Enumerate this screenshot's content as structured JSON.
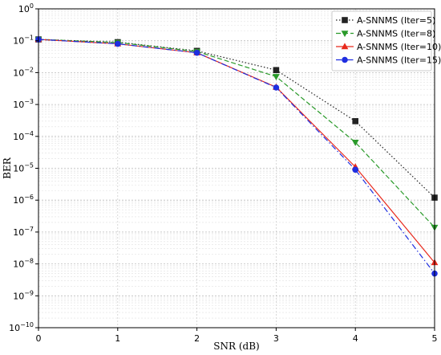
{
  "chart_data": {
    "type": "line",
    "xlabel": "SNR (dB)",
    "ylabel": "BER",
    "xlim": [
      0,
      5
    ],
    "ylim": [
      1e-10,
      1
    ],
    "yscale": "log",
    "grid": true,
    "legend_position": "top-right",
    "x": [
      0,
      1,
      2,
      3,
      4,
      5
    ],
    "x_tick_labels": [
      "0",
      "1",
      "2",
      "3",
      "4",
      "5"
    ],
    "y_tick_labels": [
      {
        "base": "10",
        "exp": "0",
        "value": 1
      },
      {
        "base": "10",
        "exp": "−1",
        "value": 0.1
      },
      {
        "base": "10",
        "exp": "−2",
        "value": 0.01
      },
      {
        "base": "10",
        "exp": "−3",
        "value": 0.001
      },
      {
        "base": "10",
        "exp": "−4",
        "value": 0.0001
      },
      {
        "base": "10",
        "exp": "−5",
        "value": 1e-05
      },
      {
        "base": "10",
        "exp": "−6",
        "value": 1e-06
      },
      {
        "base": "10",
        "exp": "−7",
        "value": 1e-07
      },
      {
        "base": "10",
        "exp": "−8",
        "value": 1e-08
      },
      {
        "base": "10",
        "exp": "−9",
        "value": 1e-09
      },
      {
        "base": "10",
        "exp": "−10",
        "value": 1e-10
      }
    ],
    "series": [
      {
        "name": "A-SNNMS (Iter=5)",
        "values": [
          0.11,
          0.09,
          0.048,
          0.012,
          0.0003,
          1.2e-06
        ],
        "color": "#222222",
        "dash": "dotted",
        "marker": "square"
      },
      {
        "name": "A-SNNMS (Iter=8)",
        "values": [
          0.11,
          0.088,
          0.046,
          0.0075,
          6.5e-05,
          1.4e-07
        ],
        "color": "#2a9a2a",
        "dash": "dashed",
        "marker": "triangle-down"
      },
      {
        "name": "A-SNNMS (Iter=10)",
        "values": [
          0.11,
          0.08,
          0.042,
          0.0035,
          1.1e-05,
          1.1e-08
        ],
        "color": "#e8291c",
        "dash": "solid",
        "marker": "triangle-up"
      },
      {
        "name": "A-SNNMS (Iter=15)",
        "values": [
          0.11,
          0.08,
          0.042,
          0.0034,
          9e-06,
          5e-09
        ],
        "color": "#1f2ee0",
        "dash": "dashdot",
        "marker": "circle"
      }
    ]
  }
}
